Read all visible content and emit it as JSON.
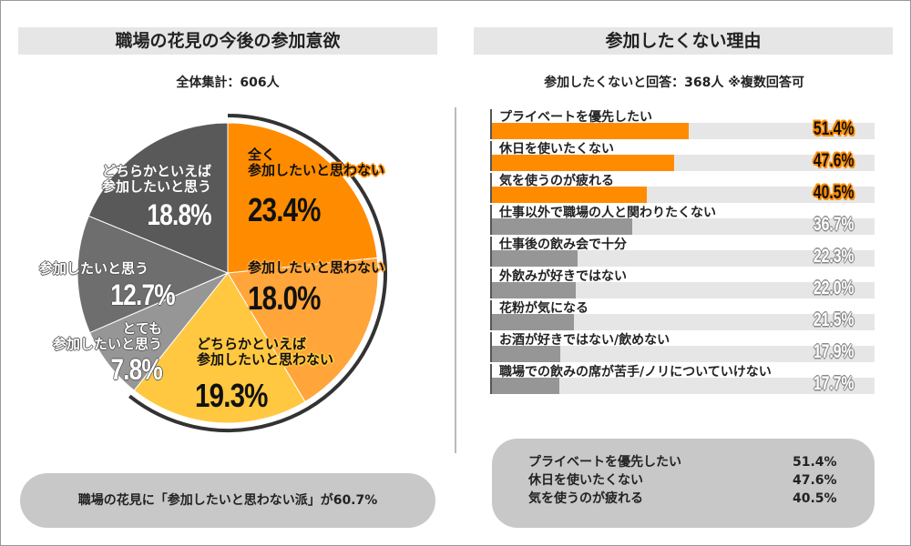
{
  "left": {
    "title": "職場の花見の今後の参加意欲",
    "subtitle": "全体集計：606人",
    "footer": "職場の花見に「参加したいと思わない派」が60.7%"
  },
  "right": {
    "title": "参加したくない理由",
    "subtitle": "参加したくないと回答：368人 ※複数回答可"
  },
  "chart_data": [
    {
      "type": "pie",
      "start": "top",
      "direction": "clockwise",
      "slices": [
        {
          "label": "全く参加したいと思わない",
          "label_lines": [
            "全く",
            "参加したいと思わない"
          ],
          "value": 23.4,
          "text": "23.4%",
          "color": "#ff8c00"
        },
        {
          "label": "参加したいと思わない",
          "label_lines": [
            "参加したいと思わない"
          ],
          "value": 18.0,
          "text": "18.0%",
          "color": "#ffa53a"
        },
        {
          "label": "どちらかといえば参加したいと思わない",
          "label_lines": [
            "どちらかといえば",
            "参加したいと思わない"
          ],
          "value": 19.3,
          "text": "19.3%",
          "color": "#ffc840"
        },
        {
          "label": "とても参加したいと思う",
          "label_lines": [
            "とても",
            "参加したいと思う"
          ],
          "value": 7.8,
          "text": "7.8%",
          "color": "#969696"
        },
        {
          "label": "参加したいと思う",
          "label_lines": [
            "参加したいと思う"
          ],
          "value": 12.7,
          "text": "12.7%",
          "color": "#6e6e6e"
        },
        {
          "label": "どちらかといえば参加したいと思う",
          "label_lines": [
            "どちらかといえば",
            "参加したいと思う"
          ],
          "value": 18.8,
          "text": "18.8%",
          "color": "#595959"
        }
      ],
      "highlight_arc": {
        "value": 60.7,
        "color": "#333333"
      }
    },
    {
      "type": "bar",
      "orientation": "horizontal",
      "xlim": [
        0,
        100
      ],
      "highlight_color": "#ff8c00",
      "base_color": "#969696",
      "track_color": "#e6e6e6",
      "bars": [
        {
          "label": "プライベートを優先したい",
          "value": 51.4,
          "text": "51.4%",
          "highlight": true
        },
        {
          "label": "休日を使いたくない",
          "value": 47.6,
          "text": "47.6%",
          "highlight": true
        },
        {
          "label": "気を使うのが疲れる",
          "value": 40.5,
          "text": "40.5%",
          "highlight": true
        },
        {
          "label": "仕事以外で職場の人と関わりたくない",
          "value": 36.7,
          "text": "36.7%",
          "highlight": false
        },
        {
          "label": "仕事後の飲み会で十分",
          "value": 22.3,
          "text": "22.3%",
          "highlight": false
        },
        {
          "label": "外飲みが好きではない",
          "value": 22.0,
          "text": "22.0%",
          "highlight": false
        },
        {
          "label": "花粉が気になる",
          "value": 21.5,
          "text": "21.5%",
          "highlight": false
        },
        {
          "label": "お酒が好きではない/飲めない",
          "value": 17.9,
          "text": "17.9%",
          "highlight": false
        },
        {
          "label": "職場での飲みの席が苦手/ノリについていけない",
          "value": 17.7,
          "text": "17.7%",
          "highlight": false
        }
      ]
    }
  ],
  "summary": [
    {
      "label": "プライベートを優先したい",
      "value": "51.4%"
    },
    {
      "label": "休日を使いたくない",
      "value": "47.6%"
    },
    {
      "label": "気を使うのが疲れる",
      "value": "40.5%"
    }
  ]
}
